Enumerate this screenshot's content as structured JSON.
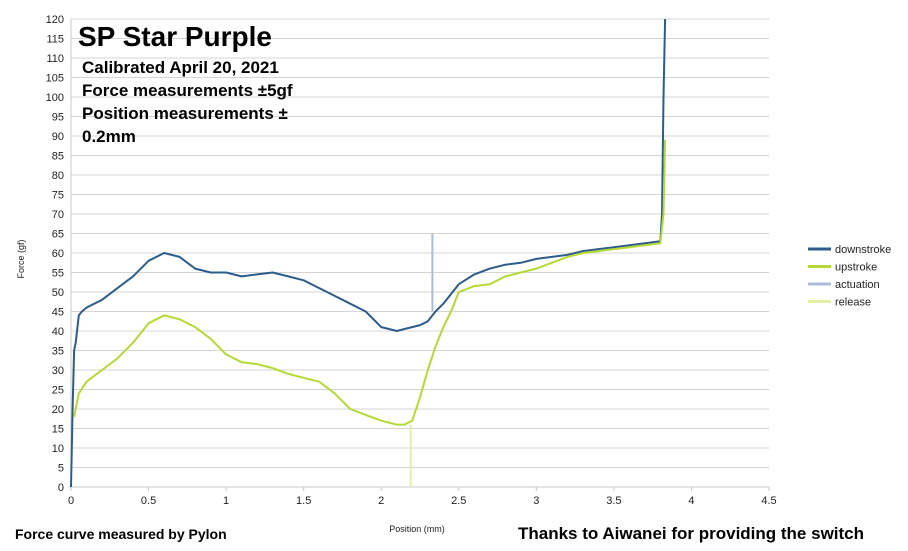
{
  "chart_data": {
    "type": "line",
    "title": "SP Star Purple",
    "subtitle_lines": [
      "Calibrated April 20, 2021",
      "Force measurements ±5gf",
      "Position measurements ±",
      "0.2mm"
    ],
    "xlabel": "Position (mm)",
    "ylabel": "Force (gf)",
    "xlim": [
      0,
      4.5
    ],
    "ylim": [
      0,
      120
    ],
    "x_ticks": [
      "0",
      "0.5",
      "1",
      "1.5",
      "2",
      "2.5",
      "3",
      "3.5",
      "4",
      "4.5"
    ],
    "y_ticks": [
      "0",
      "5",
      "10",
      "15",
      "20",
      "25",
      "30",
      "35",
      "40",
      "45",
      "50",
      "55",
      "60",
      "65",
      "70",
      "75",
      "80",
      "85",
      "90",
      "95",
      "100",
      "105",
      "110",
      "115",
      "120"
    ],
    "grid": "horizontal",
    "legend_position": "right",
    "series": [
      {
        "name": "downstroke",
        "color": "#2e5c8a",
        "x": [
          0,
          0.01,
          0.02,
          0.03,
          0.05,
          0.07,
          0.1,
          0.2,
          0.3,
          0.4,
          0.5,
          0.6,
          0.7,
          0.8,
          0.9,
          1.0,
          1.1,
          1.2,
          1.3,
          1.4,
          1.5,
          1.6,
          1.7,
          1.8,
          1.9,
          2.0,
          2.05,
          2.1,
          2.15,
          2.2,
          2.25,
          2.3,
          2.35,
          2.4,
          2.5,
          2.6,
          2.7,
          2.8,
          2.9,
          3.0,
          3.1,
          3.2,
          3.3,
          3.4,
          3.5,
          3.6,
          3.7,
          3.8,
          3.81,
          3.82,
          3.83
        ],
        "y": [
          0,
          20,
          35,
          37,
          44,
          45,
          46,
          48,
          51,
          54,
          58,
          60,
          59,
          56,
          55,
          55,
          54,
          54.5,
          55,
          54,
          53,
          51,
          49,
          47,
          45,
          41,
          40.5,
          40,
          40.5,
          41,
          41.5,
          42.5,
          45,
          47,
          52,
          54.5,
          56,
          57,
          57.5,
          58.5,
          59,
          59.5,
          60.5,
          61,
          61.5,
          62,
          62.5,
          63,
          70,
          100,
          120
        ]
      },
      {
        "name": "upstroke",
        "color": "#b5d934",
        "x": [
          0.02,
          0.05,
          0.1,
          0.2,
          0.3,
          0.4,
          0.5,
          0.6,
          0.7,
          0.8,
          0.9,
          1.0,
          1.1,
          1.2,
          1.3,
          1.4,
          1.5,
          1.6,
          1.7,
          1.8,
          1.9,
          2.0,
          2.1,
          2.15,
          2.2,
          2.25,
          2.3,
          2.35,
          2.4,
          2.45,
          2.5,
          2.6,
          2.7,
          2.8,
          2.9,
          3.0,
          3.1,
          3.2,
          3.3,
          3.4,
          3.5,
          3.6,
          3.7,
          3.8,
          3.82,
          3.83
        ],
        "y": [
          18,
          24,
          27,
          30,
          33,
          37,
          42,
          44,
          43,
          41,
          38,
          34,
          32,
          31.5,
          30.5,
          29,
          28,
          27,
          24,
          20,
          18.5,
          17,
          16,
          16,
          17,
          23,
          30,
          36,
          41,
          45,
          50,
          51.5,
          52,
          54,
          55,
          56,
          57.5,
          59,
          60,
          60.5,
          61,
          61.5,
          62,
          62.5,
          70,
          89
        ]
      },
      {
        "name": "actuation",
        "color": "#aabbd8",
        "x": [
          2.33,
          2.33
        ],
        "y": [
          45,
          65
        ]
      },
      {
        "name": "release",
        "color": "#e2f0a5",
        "x": [
          2.19,
          2.19
        ],
        "y": [
          0,
          16
        ]
      }
    ],
    "footer_left": "Force curve measured by Pylon",
    "footer_right": "Thanks to Aiwanei for providing the switch"
  }
}
